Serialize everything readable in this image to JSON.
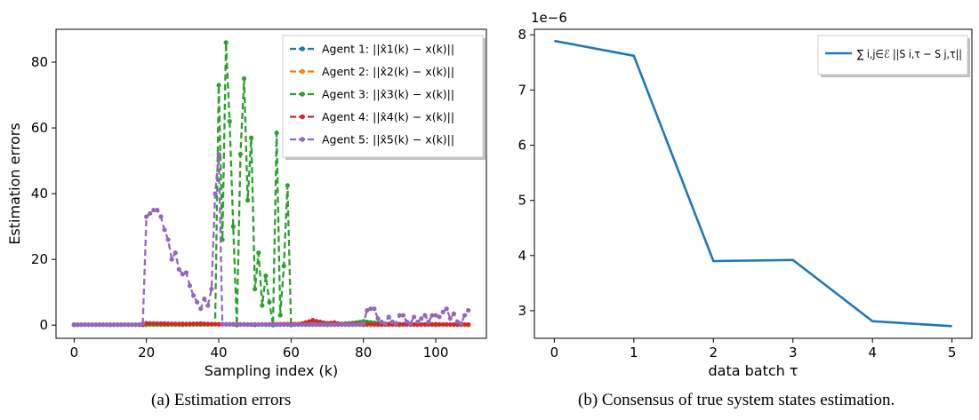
{
  "captions": {
    "a": "(a) Estimation errors",
    "b": "(b) Consensus of true system states estimation."
  },
  "chart_data": [
    {
      "type": "line",
      "xlabel": "Sampling index (k)",
      "ylabel": "Estimation errors",
      "xlim": [
        -5,
        114
      ],
      "ylim": [
        -4,
        90
      ],
      "xticks": [
        0,
        20,
        40,
        60,
        80,
        100
      ],
      "yticks": [
        0,
        20,
        40,
        60,
        80
      ],
      "legend_position": "top-right",
      "series": [
        {
          "name": "Agent 1: ||x̂1(k) − x(k)||",
          "color": "#1f77b4",
          "x": [
            0,
            10,
            20,
            30,
            40,
            50,
            60,
            70,
            80,
            90,
            100,
            109
          ],
          "y": [
            0.1,
            0.1,
            0.1,
            0.1,
            0.2,
            0.1,
            0.1,
            0.1,
            0.1,
            0.1,
            0.1,
            0.1
          ]
        },
        {
          "name": "Agent 2: ||x̂2(k) − x(k)||",
          "color": "#ff7f0e",
          "x": [
            0,
            20,
            40,
            60,
            66,
            80,
            100,
            109
          ],
          "y": [
            0.1,
            0.1,
            0.2,
            0.3,
            0.5,
            0.2,
            0.2,
            0.1
          ]
        },
        {
          "name": "Agent 3: ||x̂3(k) − x(k)||",
          "color": "#2ca02c",
          "x": [
            0,
            38,
            39,
            40,
            41,
            42,
            43,
            44,
            45,
            46,
            47,
            48,
            49,
            50,
            51,
            52,
            53,
            54,
            55,
            56,
            57,
            58,
            59,
            60,
            61,
            70,
            75,
            78,
            80,
            85,
            90,
            100,
            109
          ],
          "y": [
            0.2,
            0.2,
            0.3,
            73,
            26,
            86,
            62,
            30,
            0,
            52,
            75,
            38,
            57,
            11,
            22,
            6,
            15,
            7,
            0,
            58.5,
            3,
            18,
            42.5,
            0,
            0.2,
            0.3,
            0.5,
            0.8,
            1.2,
            0.5,
            0.3,
            0.2,
            0.2
          ]
        },
        {
          "name": "Agent 4: ||x̂4(k) − x(k)||",
          "color": "#d62728",
          "x": [
            0,
            10,
            19,
            20,
            25,
            30,
            35,
            40,
            45,
            50,
            55,
            60,
            62,
            64,
            66,
            68,
            70,
            72,
            74,
            78,
            80,
            85,
            90,
            95,
            100,
            105,
            109
          ],
          "y": [
            0.1,
            0.1,
            0.1,
            0.6,
            0.5,
            0.4,
            0.5,
            0.3,
            0.3,
            0.2,
            0.3,
            0.4,
            0.3,
            0.8,
            1.5,
            1.0,
            0.6,
            0.8,
            0.3,
            0.5,
            0.3,
            0.2,
            0.3,
            0.2,
            0.3,
            0.2,
            0.2
          ]
        },
        {
          "name": "Agent 5: ||x̂5(k) − x(k)||",
          "color": "#9467bd",
          "x": [
            0,
            18,
            19,
            20,
            21,
            22,
            23,
            24,
            25,
            26,
            27,
            28,
            29,
            30,
            31,
            32,
            33,
            34,
            35,
            36,
            37,
            38,
            39,
            40,
            41,
            60,
            79,
            80,
            81,
            82,
            83,
            84,
            85,
            86,
            87,
            88,
            89,
            90,
            91,
            92,
            93,
            94,
            95,
            96,
            97,
            98,
            99,
            100,
            101,
            102,
            103,
            104,
            105,
            106,
            107,
            108,
            109
          ],
          "y": [
            0.1,
            0.1,
            0.5,
            33,
            34,
            35,
            35,
            33,
            29,
            26,
            20,
            22,
            17,
            15.5,
            16,
            12,
            9,
            7,
            5,
            8,
            6,
            11,
            40,
            52,
            0.3,
            0.2,
            0.2,
            0.5,
            4.5,
            5,
            5,
            2,
            1,
            0.5,
            2.5,
            1,
            0.5,
            3,
            3,
            1,
            0.5,
            2.5,
            1,
            2,
            3,
            1,
            3,
            3,
            2.5,
            4,
            5,
            2,
            3.5,
            1,
            0.5,
            3,
            4.5
          ]
        }
      ]
    },
    {
      "type": "line",
      "xlabel": "data batch τ",
      "ylabel": "",
      "offset_text": "1e−6",
      "xlim": [
        -0.25,
        5.25
      ],
      "ylim": [
        2.5,
        8.1
      ],
      "xticks": [
        0,
        1,
        2,
        3,
        4,
        5
      ],
      "yticks": [
        3,
        4,
        5,
        6,
        7,
        8
      ],
      "legend_position": "top-right",
      "series": [
        {
          "name": "∑ i,j∈ℰ ||S i,τ − S j,τ||",
          "color": "#1f77b4",
          "x": [
            0,
            1,
            2,
            3,
            4,
            5
          ],
          "y": [
            7.89,
            7.62,
            3.9,
            3.92,
            2.81,
            2.72
          ]
        }
      ]
    }
  ]
}
